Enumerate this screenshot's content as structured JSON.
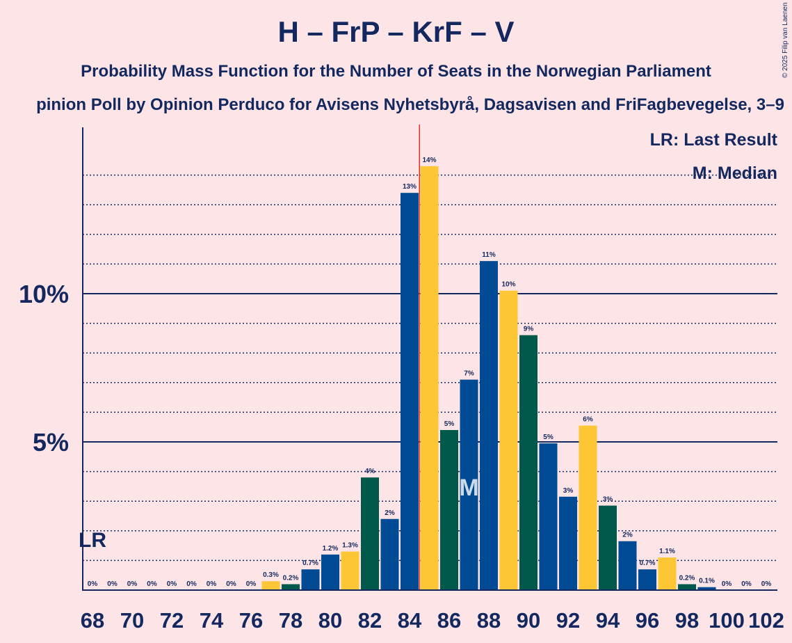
{
  "header": {
    "title": "H – FrP – KrF – V",
    "subtitle": "Probability Mass Function for the Number of Seats in the Norwegian Parliament",
    "subsubtitle": "pinion Poll by Opinion Perduco for Avisens Nyhetsbyrå, Dagsavisen and FriFagbevegelse, 3–9",
    "copyright": "© 2025 Filip van Laenen"
  },
  "legend": {
    "last_result": "LR: Last Result",
    "median": "M: Median"
  },
  "markers": {
    "lr_label": "LR",
    "median_label": "M"
  },
  "colors": {
    "background": "#FDE4E6",
    "text": "#13285E",
    "bar_colors": [
      "#004B93",
      "#FDC635",
      "#00594A",
      "#004B93"
    ],
    "majority_line": "#E0312B"
  },
  "chart_data": {
    "type": "bar",
    "x": [
      68,
      69,
      70,
      71,
      72,
      73,
      74,
      75,
      76,
      77,
      78,
      79,
      80,
      81,
      82,
      83,
      84,
      85,
      86,
      87,
      88,
      89,
      90,
      91,
      92,
      93,
      94,
      95,
      96,
      97,
      98,
      99,
      100,
      101,
      102
    ],
    "values": [
      0,
      0,
      0,
      0,
      0,
      0,
      0,
      0,
      0,
      0.3,
      0.2,
      0.7,
      1.2,
      1.3,
      3.8,
      2.4,
      13.4,
      14.3,
      5.4,
      7.1,
      11.1,
      10.1,
      8.6,
      4.95,
      3.15,
      5.55,
      2.85,
      1.65,
      0.7,
      1.1,
      0.2,
      0.1,
      0,
      0,
      0
    ],
    "labels": [
      "0%",
      "0%",
      "0%",
      "0%",
      "0%",
      "0%",
      "0%",
      "0%",
      "0%",
      "0.3%",
      "0.2%",
      "0.7%",
      "1.2%",
      "1.3%",
      "4%",
      "2%",
      "13%",
      "14%",
      "5%",
      "7%",
      "11%",
      "10%",
      "9%",
      "5%",
      "3%",
      "6%",
      "3%",
      "2%",
      "0.7%",
      "1.1%",
      "0.2%",
      "0.1%",
      "0%",
      "0%",
      "0%"
    ],
    "x_ticks": [
      "68",
      "70",
      "72",
      "74",
      "76",
      "78",
      "80",
      "82",
      "84",
      "86",
      "88",
      "90",
      "92",
      "94",
      "96",
      "98",
      "100",
      "102"
    ],
    "y_ticks": [
      {
        "value": 5,
        "label": "5%"
      },
      {
        "value": 10,
        "label": "10%"
      }
    ],
    "ylim": [
      0,
      15.6
    ],
    "last_result": 68,
    "median": 87,
    "majority_after": 84.5,
    "grid": true
  }
}
